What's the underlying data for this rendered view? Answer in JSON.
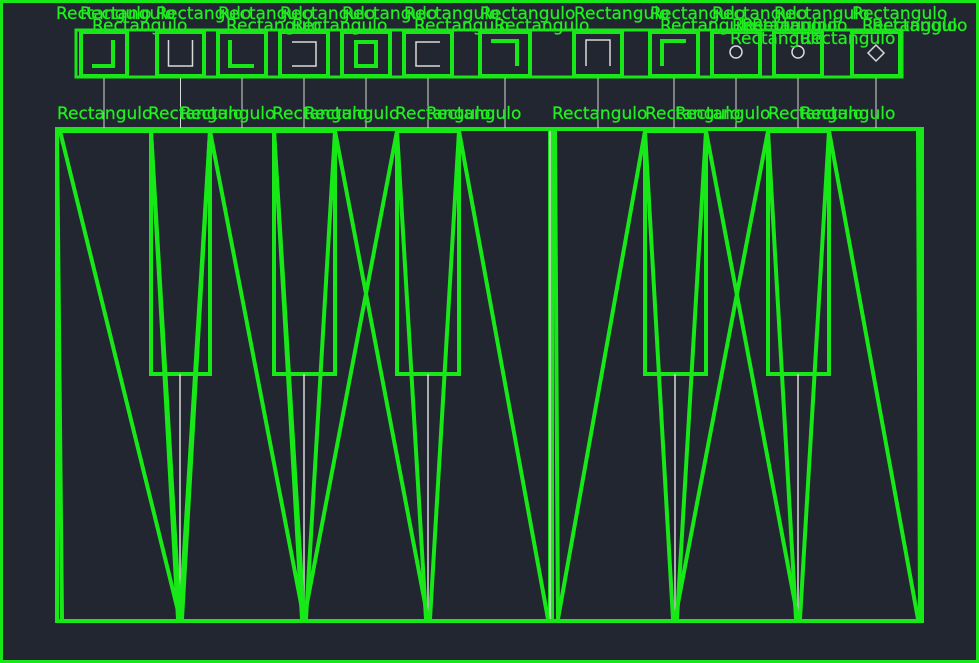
{
  "canvas": {
    "background": "#222630",
    "accent": "#18e818",
    "line_color": "#d9d9d9"
  },
  "label_text": "Rectangulo",
  "top_icons": [
    {
      "name": "corner-bottom-right-icon"
    },
    {
      "name": "u-shape-icon"
    },
    {
      "name": "corner-bottom-left-icon"
    },
    {
      "name": "bracket-right-icon"
    },
    {
      "name": "square-bold-icon"
    },
    {
      "name": "bracket-left-icon"
    },
    {
      "name": "corner-top-right-icon"
    },
    {
      "name": "n-shape-icon"
    },
    {
      "name": "corner-top-left-icon"
    },
    {
      "name": "gear-small-icon"
    },
    {
      "name": "gear-medium-icon"
    },
    {
      "name": "diamond-gear-icon"
    }
  ],
  "panels": [
    "left-panel",
    "right-panel"
  ]
}
